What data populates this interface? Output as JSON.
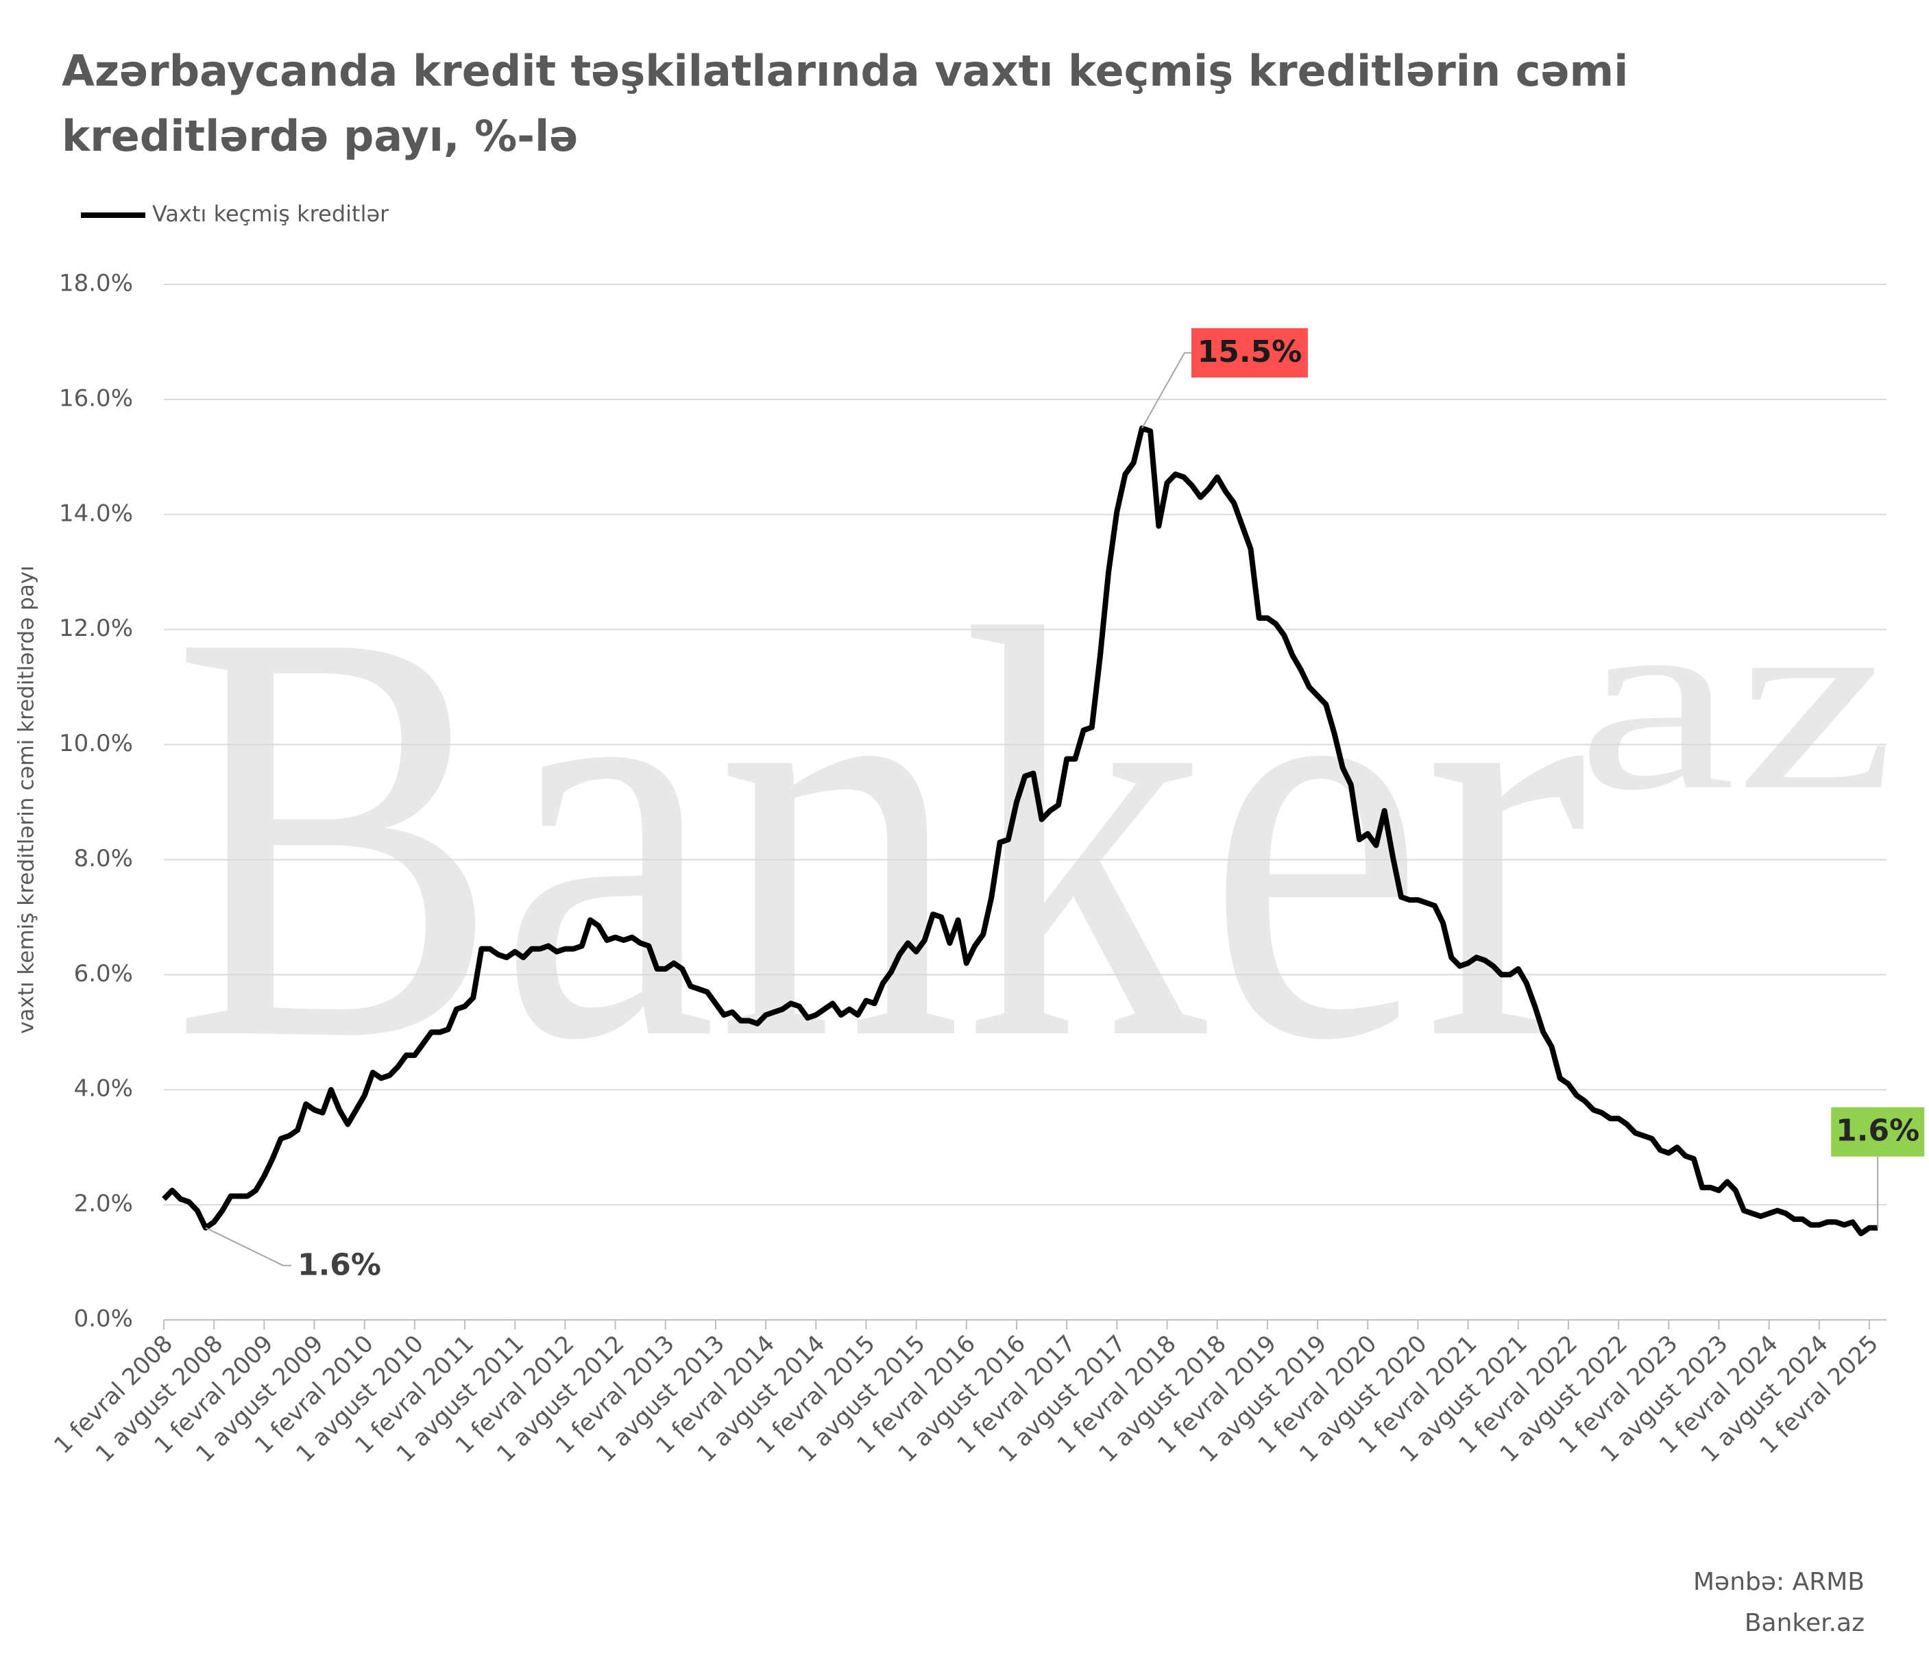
{
  "chart_data": {
    "type": "line",
    "title": [
      "Azərbaycanda kredit təşkilatlarında vaxtı keçmiş kreditlərin cəmi",
      "kreditlərdə payı, %-lə"
    ],
    "y_label": "vaxtı kemiş kreditlərin cəmi kreditlərdə payı",
    "watermark": "Banker",
    "watermark_superscript": "az",
    "source": "Mənbə: ARMB",
    "site": "Banker.az",
    "ylim": [
      0,
      18
    ],
    "yticks": [
      {
        "value": 0,
        "label": "0.0%"
      },
      {
        "value": 2,
        "label": "2.0%"
      },
      {
        "value": 4,
        "label": "4.0%"
      },
      {
        "value": 6,
        "label": "6.0%"
      },
      {
        "value": 8,
        "label": "8.0%"
      },
      {
        "value": 10,
        "label": "10.0%"
      },
      {
        "value": 12,
        "label": "12.0%"
      },
      {
        "value": 14,
        "label": "14.0%"
      },
      {
        "value": 16,
        "label": "16.0%"
      },
      {
        "value": 18,
        "label": "18.0%"
      }
    ],
    "grid": true,
    "categories": [
      "1 fevral 2008",
      null,
      null,
      null,
      null,
      null,
      "1 avgust 2008",
      null,
      null,
      null,
      null,
      null,
      "1 fevral 2009",
      null,
      null,
      null,
      null,
      null,
      "1 avgust 2009",
      null,
      null,
      null,
      null,
      null,
      "1 fevral 2010",
      null,
      null,
      null,
      null,
      null,
      "1 avgust 2010",
      null,
      null,
      null,
      null,
      null,
      "1 fevral 2011",
      null,
      null,
      null,
      null,
      null,
      "1 avgust 2011",
      null,
      null,
      null,
      null,
      null,
      "1 fevral 2012",
      null,
      null,
      null,
      null,
      null,
      "1 avgust 2012",
      null,
      null,
      null,
      null,
      null,
      "1 fevral 2013",
      null,
      null,
      null,
      null,
      null,
      "1 avgust 2013",
      null,
      null,
      null,
      null,
      null,
      "1 fevral 2014",
      null,
      null,
      null,
      null,
      null,
      "1 avgust 2014",
      null,
      null,
      null,
      null,
      null,
      "1 fevral 2015",
      null,
      null,
      null,
      null,
      null,
      "1 avgust 2015",
      null,
      null,
      null,
      null,
      null,
      "1 fevral 2016",
      null,
      null,
      null,
      null,
      null,
      "1 avgust 2016",
      null,
      null,
      null,
      null,
      null,
      "1 fevral 2017",
      null,
      null,
      null,
      null,
      null,
      "1 avgust 2017",
      null,
      null,
      null,
      null,
      null,
      "1 fevral 2018",
      null,
      null,
      null,
      null,
      null,
      "1 avgust 2018",
      null,
      null,
      null,
      null,
      null,
      "1 fevral 2019",
      null,
      null,
      null,
      null,
      null,
      "1 avgust 2019",
      null,
      null,
      null,
      null,
      null,
      "1 fevral 2020",
      null,
      null,
      null,
      null,
      null,
      "1 avgust 2020",
      null,
      null,
      null,
      null,
      null,
      "1 fevral 2021",
      null,
      null,
      null,
      null,
      null,
      "1 avgust 2021",
      null,
      null,
      null,
      null,
      null,
      "1 fevral 2022",
      null,
      null,
      null,
      null,
      null,
      "1 avgust 2022",
      null,
      null,
      null,
      null,
      null,
      "1 fevral 2023",
      null,
      null,
      null,
      null,
      null,
      "1 avgust 2023",
      null,
      null,
      null,
      null,
      null,
      "1 fevral 2024",
      null,
      null,
      null,
      null,
      null,
      "1 avgust 2024",
      null,
      null,
      null,
      null,
      null,
      "1 fevral 2025",
      null
    ],
    "series": [
      {
        "name": "Vaxtı keçmiş kreditlər",
        "color": "#000000",
        "values": [
          2.1,
          2.25,
          2.1,
          2.05,
          1.9,
          1.6,
          1.7,
          1.9,
          2.15,
          2.15,
          2.15,
          2.25,
          2.5,
          2.8,
          3.15,
          3.2,
          3.3,
          3.75,
          3.65,
          3.6,
          4.0,
          3.65,
          3.4,
          3.65,
          3.9,
          4.3,
          4.2,
          4.25,
          4.4,
          4.6,
          4.6,
          4.8,
          5.0,
          5.0,
          5.05,
          5.4,
          5.45,
          5.6,
          6.45,
          6.45,
          6.35,
          6.3,
          6.4,
          6.3,
          6.45,
          6.45,
          6.5,
          6.4,
          6.45,
          6.45,
          6.5,
          6.95,
          6.85,
          6.6,
          6.65,
          6.6,
          6.65,
          6.55,
          6.5,
          6.1,
          6.1,
          6.2,
          6.1,
          5.8,
          5.75,
          5.7,
          5.5,
          5.3,
          5.35,
          5.2,
          5.2,
          5.15,
          5.3,
          5.35,
          5.4,
          5.5,
          5.45,
          5.25,
          5.3,
          5.4,
          5.5,
          5.3,
          5.4,
          5.3,
          5.55,
          5.5,
          5.85,
          6.05,
          6.35,
          6.55,
          6.4,
          6.6,
          7.05,
          7.0,
          6.55,
          6.95,
          6.2,
          6.5,
          6.7,
          7.35,
          8.3,
          8.35,
          9.0,
          9.45,
          9.5,
          8.7,
          8.85,
          8.95,
          9.75,
          9.75,
          10.25,
          10.3,
          11.55,
          13.0,
          14.05,
          14.7,
          14.9,
          15.5,
          15.45,
          13.8,
          14.55,
          14.7,
          14.65,
          14.5,
          14.3,
          14.45,
          14.65,
          14.4,
          14.2,
          13.8,
          13.4,
          12.2,
          12.2,
          12.1,
          11.9,
          11.55,
          11.3,
          11.0,
          10.85,
          10.7,
          10.2,
          9.6,
          9.3,
          8.35,
          8.45,
          8.25,
          8.85,
          8.05,
          7.35,
          7.3,
          7.3,
          7.25,
          7.2,
          6.9,
          6.3,
          6.15,
          6.2,
          6.3,
          6.25,
          6.15,
          6.0,
          6.0,
          6.1,
          5.85,
          5.45,
          5.0,
          4.75,
          4.2,
          4.1,
          3.9,
          3.8,
          3.65,
          3.6,
          3.5,
          3.5,
          3.4,
          3.25,
          3.2,
          3.15,
          2.95,
          2.9,
          3.0,
          2.85,
          2.8,
          2.3,
          2.3,
          2.25,
          2.4,
          2.25,
          1.9,
          1.85,
          1.8,
          1.85,
          1.9,
          1.85,
          1.75,
          1.75,
          1.65,
          1.65,
          1.7,
          1.7,
          1.65,
          1.7,
          1.5,
          1.6,
          1.6
        ],
        "value_labels": [
          null,
          null,
          null,
          null,
          null,
          "1.6%",
          null,
          null,
          null,
          null,
          null,
          null,
          null,
          null,
          null,
          null,
          null,
          null,
          null,
          null,
          null,
          null,
          null,
          null,
          null,
          null,
          null,
          null,
          null,
          null,
          null,
          null,
          null,
          null,
          null,
          null,
          null,
          null,
          null,
          null,
          null,
          null,
          null,
          null,
          null,
          null,
          null,
          null,
          null,
          null,
          null,
          null,
          null,
          null,
          null,
          null,
          null,
          null,
          null,
          null,
          null,
          null,
          null,
          null,
          null,
          null,
          null,
          null,
          null,
          null,
          null,
          null,
          null,
          null,
          null,
          null,
          null,
          null,
          null,
          null,
          null,
          null,
          null,
          null,
          null,
          null,
          null,
          null,
          null,
          null,
          null,
          null,
          null,
          null,
          null,
          null,
          null,
          null,
          null,
          null,
          null,
          null,
          null,
          null,
          null,
          null,
          null,
          null,
          null,
          null,
          null,
          null,
          null,
          null,
          null,
          null,
          null,
          "15.5%",
          null,
          null,
          null,
          null,
          null,
          null,
          null,
          null,
          null,
          null,
          null,
          null,
          null,
          null,
          null,
          null,
          null,
          null,
          null,
          null,
          null,
          null,
          null,
          null,
          null,
          null,
          null,
          null,
          null,
          null,
          null,
          null,
          null,
          null,
          null,
          null,
          null,
          null,
          null,
          null,
          null,
          null,
          null,
          null,
          null,
          null,
          null,
          null,
          null,
          null,
          null,
          null,
          null,
          null,
          null,
          null,
          null,
          null,
          null,
          null,
          null,
          null,
          null,
          null,
          null,
          null,
          null,
          null,
          null,
          null,
          null,
          null,
          null,
          null,
          null,
          null,
          null,
          null,
          null,
          null,
          null,
          null,
          null,
          null,
          null,
          null,
          null,
          "1.6%"
        ]
      }
    ]
  }
}
